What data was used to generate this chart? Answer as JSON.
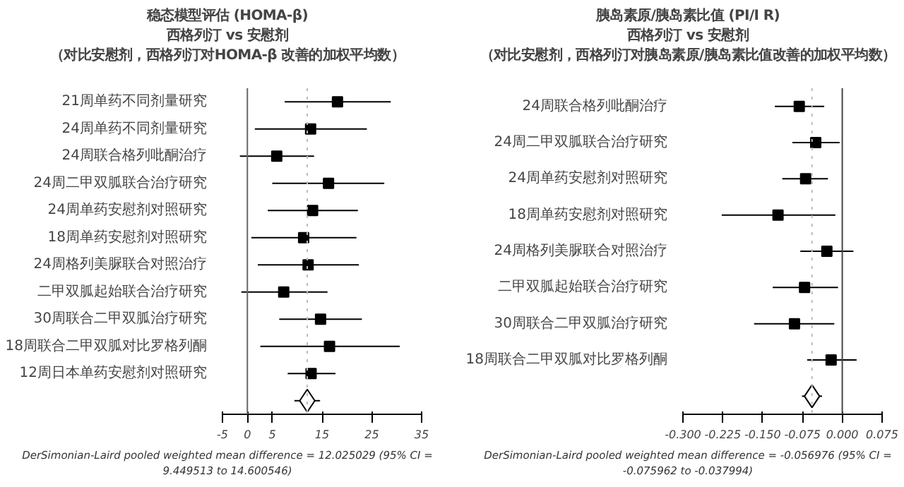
{
  "chart_data": [
    {
      "type": "scatter",
      "orientation": "horizontal",
      "title": "稳态模型评估 (HOMA-β)",
      "subtitle": [
        "西格列汀 vs 安慰剂",
        "（对比安慰剂，西格列汀对HOMA-β 改善的加权平均数）"
      ],
      "categories": [
        "21周单药不同剂量研究",
        "24周单药不同剂量研究",
        "24周联合格列吡酮治疗",
        "24周二甲双胍联合治疗研究",
        "24周单药安慰剂对照研究",
        "18周单药安慰剂对照研究",
        "24周格列美脲联合对照治疗",
        "二甲双胍起始联合治疗研究",
        "30周联合二甲双胍治疗研究",
        "18周联合二甲双胍对比罗格列酮",
        "12周日本单药安慰剂对照研究",
        null
      ],
      "series": [
        {
          "color": "#000000",
          "marker": "square",
          "values": [
            18.1,
            12.7,
            5.9,
            16.3,
            13.1,
            11.3,
            12.2,
            7.3,
            14.7,
            16.5,
            12.8,
            null
          ],
          "errors": [
            [
              7.5,
              28.8
            ],
            [
              1.5,
              24.0
            ],
            [
              -1.5,
              13.4
            ],
            [
              5.0,
              27.5
            ],
            [
              4.1,
              22.2
            ],
            [
              0.8,
              21.9
            ],
            [
              2.1,
              22.4
            ],
            [
              -1.2,
              16.1
            ],
            [
              6.4,
              23.0
            ],
            [
              2.6,
              30.6
            ],
            [
              8.1,
              17.7
            ],
            null
          ]
        },
        {
          "color": "#000000",
          "marker": "diamond",
          "values": [
            null,
            null,
            null,
            null,
            null,
            null,
            null,
            null,
            null,
            null,
            null,
            12.03
          ],
          "errors": [
            null,
            null,
            null,
            null,
            null,
            null,
            null,
            null,
            null,
            null,
            null,
            [
              9.449513,
              14.600546
            ]
          ]
        }
      ],
      "xlim": [
        -5,
        35
      ],
      "xticks": [
        -5,
        0,
        5,
        15,
        25,
        35
      ],
      "ref_lines": [
        {
          "axis": "x",
          "value": 0,
          "color": "#666666",
          "line_style": "solid"
        },
        {
          "axis": "x",
          "value": 12.025029,
          "color": "#bbbbbb",
          "line_style": "dotted"
        }
      ],
      "annotations": [
        "DerSimonian-Laird pooled weighted mean difference = 12.025029 (95% CI = 9.449513 to 14.600546)"
      ]
    },
    {
      "type": "scatter",
      "orientation": "horizontal",
      "title": "胰岛素原/胰岛素比值 (PI/I R)",
      "subtitle": [
        "西格列汀 vs 安慰剂",
        "（对比安慰剂，西格列汀对胰岛素原/胰岛素比值改善的加权平均数）"
      ],
      "categories": [
        "24周联合格列吡酮治疗",
        "24周二甲双胍联合治疗研究",
        "24周单药安慰剂对照研究",
        "18周单药安慰剂对照研究",
        "24周格列美脲联合对照治疗",
        "二甲双胍起始联合治疗研究",
        "30周联合二甲双胍治疗研究",
        "18周联合二甲双胍对比罗格列酮",
        null
      ],
      "series": [
        {
          "color": "#000000",
          "marker": "square",
          "values": [
            -0.081,
            -0.05,
            -0.069,
            -0.121,
            -0.029,
            -0.071,
            -0.09,
            -0.021,
            null
          ],
          "errors": [
            [
              -0.127,
              -0.034
            ],
            [
              -0.094,
              -0.005
            ],
            [
              -0.113,
              -0.027
            ],
            [
              -0.227,
              -0.013
            ],
            [
              -0.079,
              0.021
            ],
            [
              -0.131,
              -0.008
            ],
            [
              -0.166,
              -0.015
            ],
            [
              -0.066,
              0.027
            ],
            null
          ]
        },
        {
          "color": "#000000",
          "marker": "diamond",
          "values": [
            null,
            null,
            null,
            null,
            null,
            null,
            null,
            null,
            -0.057
          ],
          "errors": [
            null,
            null,
            null,
            null,
            null,
            null,
            null,
            null,
            [
              -0.075962,
              -0.037994
            ]
          ]
        }
      ],
      "xlim": [
        -0.3,
        0.075
      ],
      "xticks": [
        {
          "value": -0.3,
          "label": "-0.300"
        },
        {
          "value": -0.225,
          "label": "-0.225"
        },
        {
          "value": -0.15,
          "label": "-0.150"
        },
        {
          "value": -0.075,
          "label": "-0.075"
        },
        {
          "value": 0,
          "label": "0.000"
        },
        {
          "value": 0.075,
          "label": "0.075"
        }
      ],
      "ref_lines": [
        {
          "axis": "x",
          "value": 0,
          "color": "#444444",
          "line_style": "solid"
        },
        {
          "axis": "x",
          "value": -0.056976,
          "color": "#bbbbbb",
          "line_style": "dotted"
        }
      ],
      "annotations": [
        "DerSimonian-Laird pooled weighted mean difference = -0.056976 (95% CI = -0.075962 to -0.037994)"
      ]
    }
  ]
}
